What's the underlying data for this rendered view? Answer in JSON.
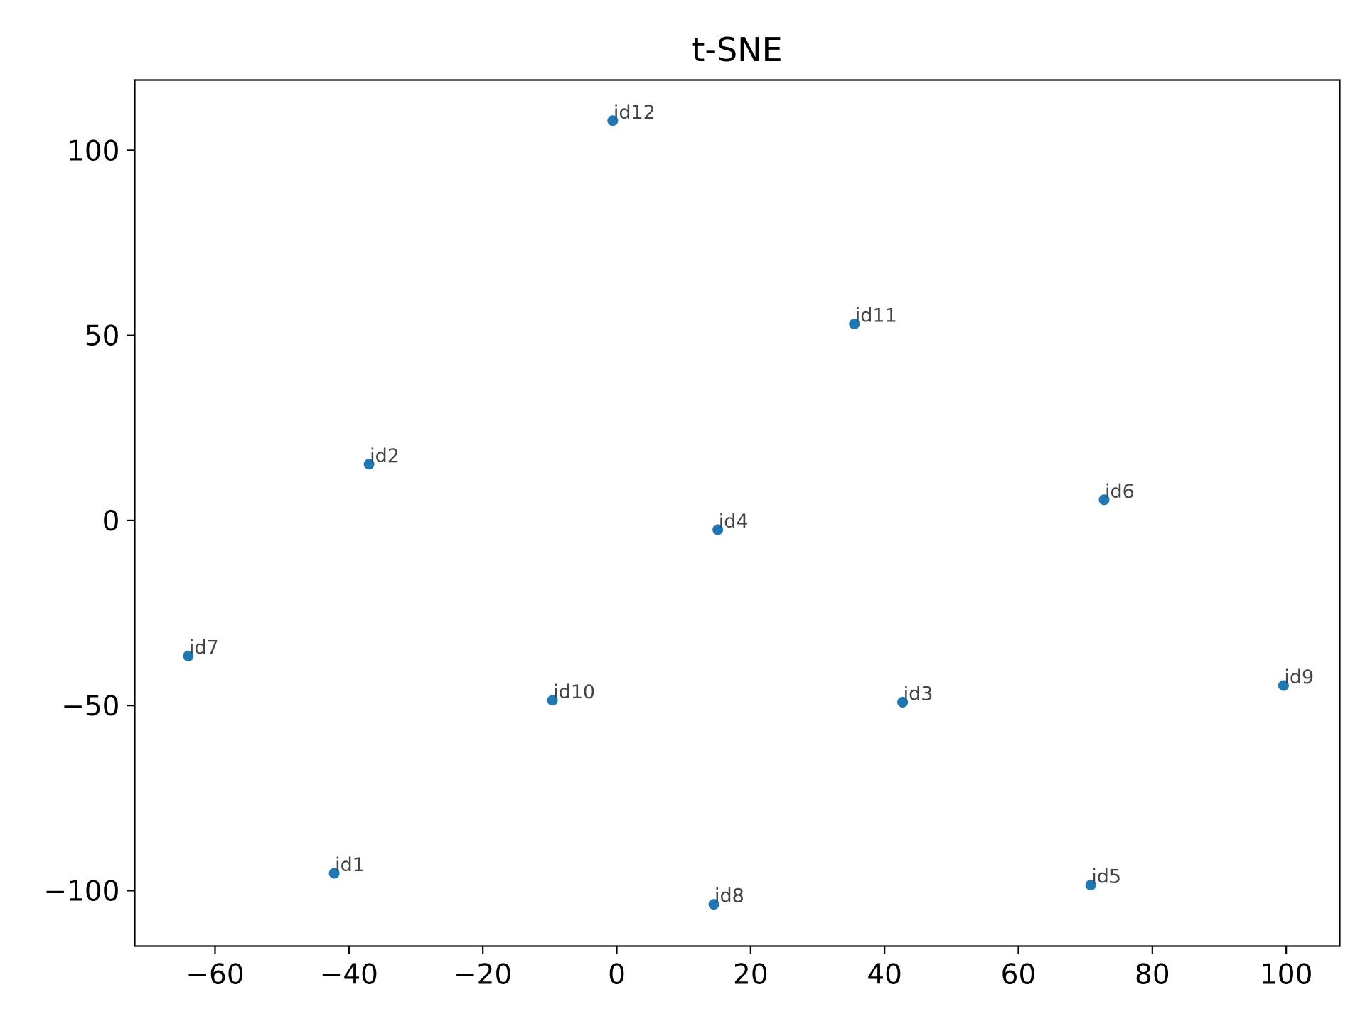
{
  "chart_data": {
    "type": "scatter",
    "title": "t-SNE",
    "xlabel": "",
    "ylabel": "",
    "xlim": [
      -72,
      108
    ],
    "ylim": [
      -115,
      119
    ],
    "grid": false,
    "x_ticks": [
      {
        "value": -60,
        "label": "−60"
      },
      {
        "value": -40,
        "label": "−40"
      },
      {
        "value": -20,
        "label": "−20"
      },
      {
        "value": 0,
        "label": "0"
      },
      {
        "value": 20,
        "label": "20"
      },
      {
        "value": 40,
        "label": "40"
      },
      {
        "value": 60,
        "label": "60"
      },
      {
        "value": 80,
        "label": "80"
      },
      {
        "value": 100,
        "label": "100"
      }
    ],
    "y_ticks": [
      {
        "value": 100,
        "label": "100"
      },
      {
        "value": 50,
        "label": "50"
      },
      {
        "value": 0,
        "label": "0"
      },
      {
        "value": -50,
        "label": "−50"
      },
      {
        "value": -100,
        "label": "−100"
      }
    ],
    "marker_color": "#1f77b4",
    "points": [
      {
        "label": "id1",
        "x": -42.2,
        "y": -95.3
      },
      {
        "label": "id2",
        "x": -37.0,
        "y": 15.2
      },
      {
        "label": "id3",
        "x": 42.7,
        "y": -49.1
      },
      {
        "label": "id4",
        "x": 15.1,
        "y": -2.5
      },
      {
        "label": "id5",
        "x": 70.8,
        "y": -98.5
      },
      {
        "label": "id6",
        "x": 72.8,
        "y": 5.6
      },
      {
        "label": "id7",
        "x": -64.0,
        "y": -36.6
      },
      {
        "label": "id8",
        "x": 14.5,
        "y": -103.7
      },
      {
        "label": "id9",
        "x": 99.6,
        "y": -44.6
      },
      {
        "label": "id10",
        "x": -9.6,
        "y": -48.6
      },
      {
        "label": "id11",
        "x": 35.5,
        "y": 53.1
      },
      {
        "label": "id12",
        "x": -0.6,
        "y": 108.0
      }
    ]
  }
}
